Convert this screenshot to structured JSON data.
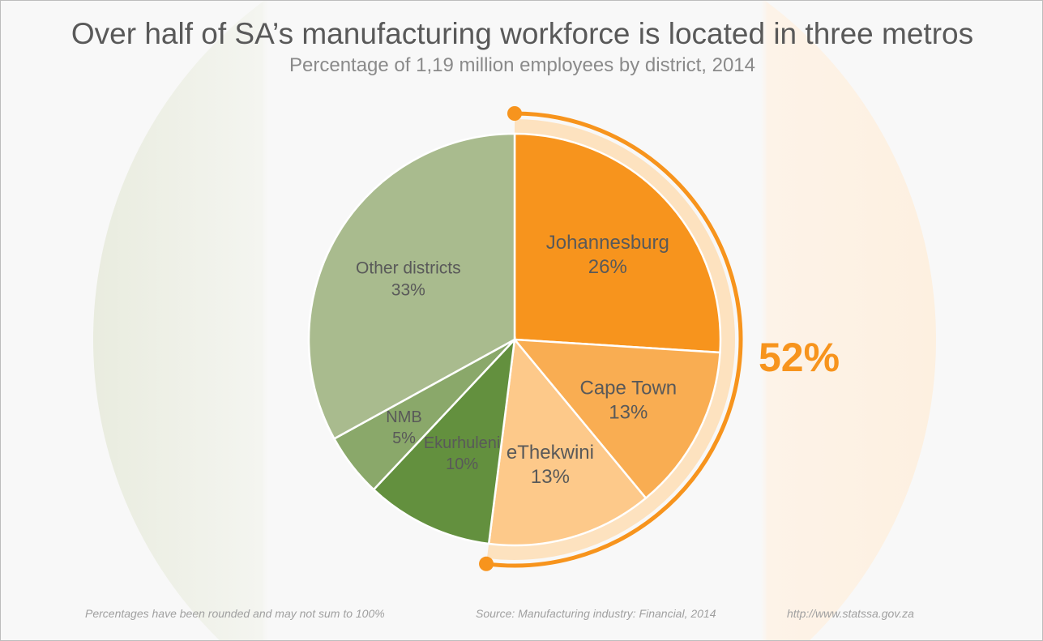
{
  "title": "Over half of SA’s manufacturing workforce is located in three metros",
  "subtitle": "Percentage of 1,19 million employees by district, 2014",
  "chart_data": {
    "type": "pie",
    "start": "12 o'clock, clockwise",
    "slices": [
      {
        "label": "Johannesburg",
        "value": 26,
        "value_label": "26%",
        "color": "#f7941d"
      },
      {
        "label": "Cape Town",
        "value": 13,
        "value_label": "13%",
        "color": "#f9ad52"
      },
      {
        "label": "eThekwini",
        "value": 13,
        "value_label": "13%",
        "color": "#fdc98a"
      },
      {
        "label": "Ekurhuleni",
        "value": 10,
        "value_label": "10%",
        "color": "#63903e"
      },
      {
        "label": "NMB",
        "value": 5,
        "value_label": "5%",
        "color": "#8aa86a"
      },
      {
        "label": "Other districts",
        "value": 33,
        "value_label": "33%",
        "color": "#a9bb8e"
      }
    ],
    "highlight": {
      "label": "52%",
      "value": 52,
      "color": "#f7941d",
      "band_color": "#fde2bf"
    }
  },
  "footer": {
    "note": "Percentages have been rounded and may not sum to 100%",
    "source": "Source: Manufacturing industry: Financial, 2014",
    "url": "http://www.statssa.gov.za"
  }
}
